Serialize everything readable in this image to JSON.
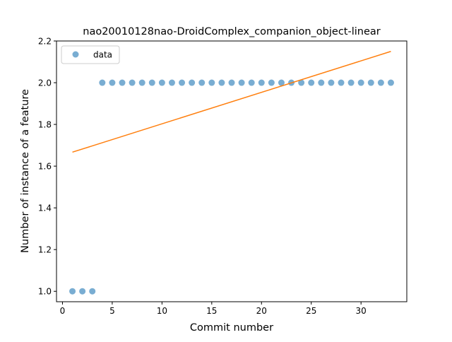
{
  "chart_data": {
    "type": "scatter",
    "title": "nao20010128nao-DroidComplex_companion_object-linear",
    "xlabel": "Commit number",
    "ylabel": "Number of instance of a feature",
    "xlim": [
      -0.6,
      34.6
    ],
    "ylim": [
      0.95,
      2.2
    ],
    "xticks": [
      0,
      5,
      10,
      15,
      20,
      25,
      30
    ],
    "yticks": [
      1.0,
      1.2,
      1.4,
      1.6,
      1.8,
      2.0,
      2.2
    ],
    "xtick_labels": [
      "0",
      "5",
      "10",
      "15",
      "20",
      "25",
      "30"
    ],
    "ytick_labels": [
      "1.0",
      "1.2",
      "1.4",
      "1.6",
      "1.8",
      "2.0",
      "2.2"
    ],
    "grid": false,
    "legend": {
      "placement": "top-left",
      "entries": [
        "data"
      ]
    },
    "series": [
      {
        "name": "data",
        "kind": "points",
        "color": "#1f77b4",
        "x": [
          1,
          2,
          3,
          4,
          5,
          6,
          7,
          8,
          9,
          10,
          11,
          12,
          13,
          14,
          15,
          16,
          17,
          18,
          19,
          20,
          21,
          22,
          23,
          24,
          25,
          26,
          27,
          28,
          29,
          30,
          31,
          32,
          33
        ],
        "y": [
          1,
          1,
          1,
          2,
          2,
          2,
          2,
          2,
          2,
          2,
          2,
          2,
          2,
          2,
          2,
          2,
          2,
          2,
          2,
          2,
          2,
          2,
          2,
          2,
          2,
          2,
          2,
          2,
          2,
          2,
          2,
          2,
          2
        ]
      },
      {
        "kind": "line",
        "color": "#ff7f0e",
        "x": [
          1,
          33
        ],
        "y": [
          1.667,
          2.15
        ]
      }
    ]
  }
}
